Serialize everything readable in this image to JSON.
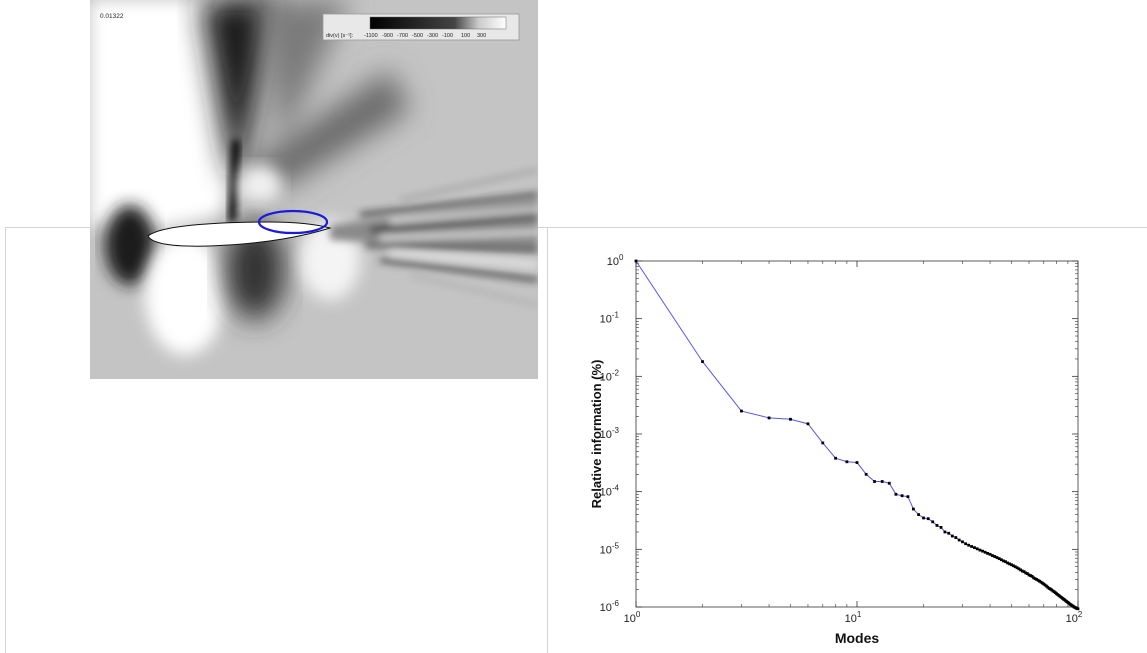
{
  "flow_field": {
    "time_label": "0.01322",
    "colorbar": {
      "label": "div(v) [s⁻¹]:",
      "ticks": [
        "-1100",
        "-900",
        "-700",
        "-500",
        "-300",
        "-100",
        "100",
        "300"
      ]
    },
    "highlight_color": "#1a1adc"
  },
  "chart_data": {
    "type": "line",
    "xlabel": "Modes",
    "ylabel": "Relative information (%)",
    "xscale": "log",
    "yscale": "log",
    "xlim": [
      1,
      100
    ],
    "ylim": [
      1e-06,
      1
    ],
    "x_ticks": [
      {
        "base": "10",
        "exp": "0"
      },
      {
        "base": "10",
        "exp": "1"
      },
      {
        "base": "10",
        "exp": "2"
      }
    ],
    "y_ticks": [
      {
        "base": "10",
        "exp": "0"
      },
      {
        "base": "10",
        "exp": "-1"
      },
      {
        "base": "10",
        "exp": "-2"
      },
      {
        "base": "10",
        "exp": "-3"
      },
      {
        "base": "10",
        "exp": "-4"
      },
      {
        "base": "10",
        "exp": "-5"
      },
      {
        "base": "10",
        "exp": "-6"
      }
    ],
    "grid": false,
    "line_color": "#5555ee",
    "marker_color": "#000000",
    "x": [
      1,
      2,
      3,
      4,
      5,
      6,
      7,
      8,
      9,
      10,
      11,
      12,
      13,
      14,
      15,
      16,
      17,
      18,
      19,
      20,
      21,
      22,
      23,
      24,
      25,
      26,
      27,
      28,
      29,
      30,
      31,
      32,
      33,
      34,
      35,
      36,
      37,
      38,
      39,
      40,
      41,
      42,
      43,
      44,
      45,
      46,
      47,
      48,
      49,
      50,
      51,
      52,
      53,
      54,
      55,
      56,
      57,
      58,
      59,
      60,
      61,
      62,
      63,
      64,
      65,
      66,
      67,
      68,
      69,
      70,
      71,
      72,
      73,
      74,
      75,
      76,
      77,
      78,
      79,
      80,
      81,
      82,
      83,
      84,
      85,
      86,
      87,
      88,
      89,
      90,
      91,
      92,
      93,
      94,
      95,
      96,
      97,
      98,
      99,
      100
    ],
    "y": [
      1.0,
      0.018,
      0.0025,
      0.0019,
      0.0018,
      0.0015,
      0.0007,
      0.00038,
      0.00033,
      0.00032,
      0.0002,
      0.00015,
      0.00015,
      0.00014,
      9e-05,
      8.5e-05,
      8.2e-05,
      5e-05,
      4e-05,
      3.5e-05,
      3.4e-05,
      3e-05,
      2.6e-05,
      2.4e-05,
      2e-05,
      1.9e-05,
      1.7e-05,
      1.6e-05,
      1.45e-05,
      1.35e-05,
      1.25e-05,
      1.18e-05,
      1.12e-05,
      1.07e-05,
      1.02e-05,
      9.7e-06,
      9.3e-06,
      8.9e-06,
      8.5e-06,
      8.2e-06,
      7.8e-06,
      7.5e-06,
      7.2e-06,
      6.9e-06,
      6.6e-06,
      6.3e-06,
      6.1e-06,
      5.8e-06,
      5.6e-06,
      5.4e-06,
      5.2e-06,
      5e-06,
      4.8e-06,
      4.6e-06,
      4.4e-06,
      4.2e-06,
      4.1e-06,
      3.9e-06,
      3.8e-06,
      3.6e-06,
      3.5e-06,
      3.4e-06,
      3.2e-06,
      3.1e-06,
      3e-06,
      2.9e-06,
      2.8e-06,
      2.7e-06,
      2.6e-06,
      2.5e-06,
      2.4e-06,
      2.3e-06,
      2.2e-06,
      2.1e-06,
      2.05e-06,
      1.98e-06,
      1.9e-06,
      1.84e-06,
      1.77e-06,
      1.7e-06,
      1.64e-06,
      1.58e-06,
      1.52e-06,
      1.47e-06,
      1.42e-06,
      1.37e-06,
      1.33e-06,
      1.28e-06,
      1.24e-06,
      1.2e-06,
      1.16e-06,
      1.12e-06,
      1.09e-06,
      1.06e-06,
      1.03e-06,
      1e-06,
      9.8e-07,
      9.6e-07,
      9.4e-07,
      9.3e-07
    ]
  }
}
